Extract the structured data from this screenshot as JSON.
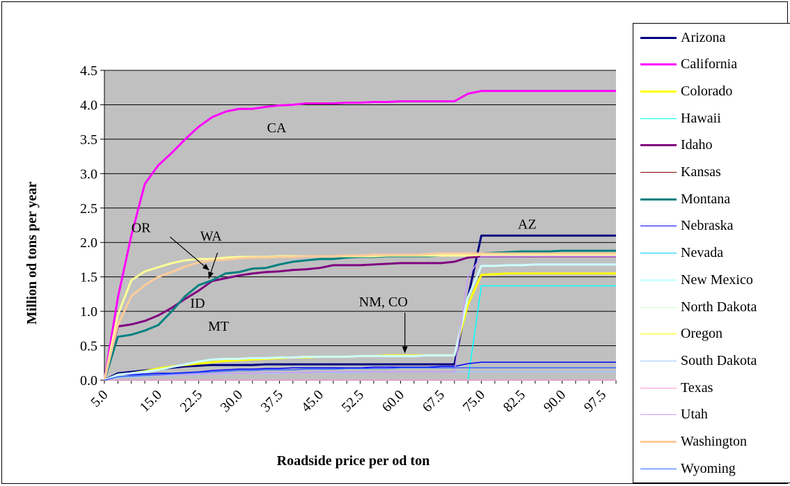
{
  "chart_data": {
    "type": "line",
    "title": "",
    "xlabel": "Roadside price per od ton",
    "ylabel": "Million od tons per year",
    "x": [
      5,
      7.5,
      10,
      12.5,
      15,
      17.5,
      20,
      22.5,
      25,
      27.5,
      30,
      32.5,
      35,
      37.5,
      40,
      42.5,
      45,
      47.5,
      50,
      52.5,
      55,
      57.5,
      60,
      62.5,
      65,
      67.5,
      70,
      72.5,
      75,
      77.5,
      80,
      82.5,
      85,
      87.5,
      90,
      92.5,
      95,
      97.5,
      100
    ],
    "x_tick_labels": [
      "5.0",
      "15.0",
      "22.5",
      "30.0",
      "37.5",
      "45.0",
      "52.5",
      "60.0",
      "67.5",
      "75.0",
      "82.5",
      "90.0",
      "97.5"
    ],
    "ylim": [
      0,
      4.5
    ],
    "y_ticks": [
      0.0,
      0.5,
      1.0,
      1.5,
      2.0,
      2.5,
      3.0,
      3.5,
      4.0,
      4.5
    ],
    "y_tick_labels": [
      "0.0",
      "0.5",
      "1.0",
      "1.5",
      "2.0",
      "2.5",
      "3.0",
      "3.5",
      "4.0",
      "4.5"
    ],
    "grid": true,
    "plot_background": "#c0c0c0",
    "legend_position": "right",
    "series": [
      {
        "name": "Arizona",
        "color": "#000080",
        "width": 3,
        "values": [
          0,
          0.1,
          0.12,
          0.14,
          0.16,
          0.18,
          0.2,
          0.21,
          0.22,
          0.22,
          0.22,
          0.22,
          0.23,
          0.23,
          0.23,
          0.23,
          0.23,
          0.23,
          0.23,
          0.23,
          0.23,
          0.23,
          0.23,
          0.23,
          0.23,
          0.23,
          0.23,
          1.2,
          2.1,
          2.1,
          2.1,
          2.1,
          2.1,
          2.1,
          2.1,
          2.1,
          2.1,
          2.1,
          2.1
        ]
      },
      {
        "name": "California",
        "color": "#ff00ff",
        "width": 3,
        "values": [
          0,
          1.2,
          2.1,
          2.85,
          3.12,
          3.3,
          3.5,
          3.68,
          3.82,
          3.9,
          3.94,
          3.94,
          3.97,
          3.99,
          4.0,
          4.02,
          4.02,
          4.02,
          4.03,
          4.03,
          4.04,
          4.04,
          4.05,
          4.05,
          4.05,
          4.05,
          4.05,
          4.16,
          4.2,
          4.2,
          4.2,
          4.2,
          4.2,
          4.2,
          4.2,
          4.2,
          4.2,
          4.2,
          4.2
        ]
      },
      {
        "name": "Colorado",
        "color": "#ffff00",
        "width": 3,
        "values": [
          0,
          0.08,
          0.1,
          0.13,
          0.17,
          0.2,
          0.22,
          0.24,
          0.26,
          0.28,
          0.29,
          0.3,
          0.31,
          0.32,
          0.33,
          0.33,
          0.34,
          0.34,
          0.34,
          0.35,
          0.35,
          0.36,
          0.36,
          0.36,
          0.36,
          0.36,
          0.36,
          1.1,
          1.53,
          1.54,
          1.55,
          1.55,
          1.55,
          1.55,
          1.55,
          1.55,
          1.55,
          1.55,
          1.55
        ]
      },
      {
        "name": "Hawaii",
        "color": "#00ffff",
        "width": 1.5,
        "values": [
          0,
          0,
          0,
          0,
          0,
          0,
          0,
          0,
          0,
          0,
          0,
          0,
          0,
          0,
          0,
          0,
          0,
          0,
          0,
          0,
          0,
          0,
          0,
          0,
          0,
          0,
          0,
          0,
          1.37,
          1.37,
          1.37,
          1.37,
          1.37,
          1.37,
          1.37,
          1.37,
          1.37,
          1.37,
          1.37
        ]
      },
      {
        "name": "Idaho",
        "color": "#800080",
        "width": 3,
        "values": [
          0,
          0.78,
          0.81,
          0.86,
          0.94,
          1.05,
          1.18,
          1.3,
          1.44,
          1.48,
          1.52,
          1.55,
          1.57,
          1.58,
          1.6,
          1.61,
          1.63,
          1.67,
          1.67,
          1.67,
          1.68,
          1.69,
          1.7,
          1.7,
          1.7,
          1.7,
          1.72,
          1.78,
          1.8,
          1.8,
          1.8,
          1.8,
          1.8,
          1.8,
          1.8,
          1.8,
          1.8,
          1.8,
          1.8
        ]
      },
      {
        "name": "Kansas",
        "color": "#800000",
        "width": 1.5,
        "values": [
          0,
          0,
          0,
          0,
          0,
          0,
          0,
          0,
          0,
          0,
          0,
          0,
          0,
          0,
          0,
          0,
          0,
          0,
          0,
          0,
          0,
          0,
          0,
          0,
          0,
          0,
          0,
          0,
          0,
          0,
          0,
          0,
          0,
          0,
          0,
          0,
          0,
          0,
          0
        ]
      },
      {
        "name": "Montana",
        "color": "#008080",
        "width": 3,
        "values": [
          0,
          0.63,
          0.66,
          0.72,
          0.8,
          1.0,
          1.22,
          1.38,
          1.45,
          1.55,
          1.57,
          1.62,
          1.63,
          1.68,
          1.72,
          1.74,
          1.76,
          1.76,
          1.78,
          1.79,
          1.79,
          1.8,
          1.8,
          1.8,
          1.8,
          1.81,
          1.82,
          1.82,
          1.84,
          1.85,
          1.86,
          1.87,
          1.87,
          1.87,
          1.88,
          1.88,
          1.88,
          1.88,
          1.88
        ]
      },
      {
        "name": "Nebraska",
        "color": "#0000ff",
        "width": 1.5,
        "values": [
          0,
          0.08,
          0.08,
          0.09,
          0.1,
          0.1,
          0.11,
          0.12,
          0.14,
          0.15,
          0.16,
          0.16,
          0.17,
          0.17,
          0.18,
          0.18,
          0.18,
          0.18,
          0.18,
          0.18,
          0.19,
          0.19,
          0.19,
          0.19,
          0.19,
          0.2,
          0.2,
          0.24,
          0.26,
          0.26,
          0.26,
          0.26,
          0.26,
          0.26,
          0.26,
          0.26,
          0.26,
          0.26,
          0.26
        ]
      },
      {
        "name": "Nevada",
        "color": "#00ccff",
        "width": 1.5,
        "values": [
          0,
          0,
          0,
          0,
          0,
          0,
          0,
          0,
          0,
          0,
          0,
          0,
          0,
          0,
          0,
          0,
          0,
          0,
          0,
          0,
          0,
          0,
          0,
          0,
          0,
          0,
          0,
          0,
          0,
          0,
          0,
          0,
          0,
          0,
          0,
          0,
          0,
          0,
          0
        ]
      },
      {
        "name": "New Mexico",
        "color": "#ccffff",
        "width": 3,
        "values": [
          0,
          0.08,
          0.1,
          0.12,
          0.15,
          0.19,
          0.23,
          0.27,
          0.3,
          0.31,
          0.31,
          0.32,
          0.32,
          0.33,
          0.33,
          0.34,
          0.34,
          0.34,
          0.34,
          0.35,
          0.35,
          0.35,
          0.35,
          0.35,
          0.36,
          0.36,
          0.36,
          1.2,
          1.66,
          1.66,
          1.67,
          1.67,
          1.68,
          1.68,
          1.68,
          1.68,
          1.68,
          1.68,
          1.68
        ]
      },
      {
        "name": "North Dakota",
        "color": "#ccffcc",
        "width": 1.5,
        "values": [
          0,
          0,
          0,
          0,
          0,
          0,
          0,
          0,
          0,
          0,
          0,
          0,
          0,
          0,
          0,
          0,
          0,
          0,
          0,
          0,
          0,
          0,
          0,
          0,
          0,
          0,
          0,
          0,
          0,
          0,
          0,
          0,
          0,
          0,
          0,
          0,
          0,
          0,
          0
        ]
      },
      {
        "name": "Oregon",
        "color": "#ffff99",
        "width": 3,
        "values": [
          0,
          0.95,
          1.45,
          1.58,
          1.64,
          1.7,
          1.74,
          1.76,
          1.76,
          1.78,
          1.79,
          1.79,
          1.79,
          1.8,
          1.8,
          1.8,
          1.8,
          1.8,
          1.8,
          1.8,
          1.8,
          1.81,
          1.81,
          1.81,
          1.81,
          1.81,
          1.81,
          1.81,
          1.82,
          1.82,
          1.82,
          1.82,
          1.82,
          1.82,
          1.82,
          1.82,
          1.82,
          1.82,
          1.82
        ]
      },
      {
        "name": "South Dakota",
        "color": "#99ccff",
        "width": 1.5,
        "values": [
          0,
          0.04,
          0.05,
          0.06,
          0.07,
          0.07,
          0.08,
          0.08,
          0.09,
          0.09,
          0.1,
          0.1,
          0.1,
          0.1,
          0.11,
          0.11,
          0.11,
          0.11,
          0.11,
          0.11,
          0.12,
          0.12,
          0.12,
          0.12,
          0.12,
          0.12,
          0.12,
          0.12,
          0.12,
          0.12,
          0.12,
          0.12,
          0.12,
          0.12,
          0.12,
          0.12,
          0.12,
          0.12,
          0.12
        ]
      },
      {
        "name": "Texas",
        "color": "#ff99cc",
        "width": 1.5,
        "values": [
          0,
          0,
          0,
          0,
          0,
          0,
          0,
          0,
          0,
          0,
          0,
          0,
          0,
          0,
          0,
          0,
          0,
          0,
          0,
          0,
          0,
          0,
          0,
          0,
          0,
          0,
          0,
          0,
          0,
          0,
          0,
          0,
          0,
          0,
          0,
          0,
          0,
          0,
          0
        ]
      },
      {
        "name": "Utah",
        "color": "#cc99ff",
        "width": 1.5,
        "values": [
          0,
          0.05,
          0.06,
          0.07,
          0.07,
          0.08,
          0.08,
          0.09,
          0.09,
          0.1,
          0.1,
          0.1,
          0.11,
          0.11,
          0.11,
          0.11,
          0.12,
          0.12,
          0.12,
          0.12,
          0.12,
          0.12,
          0.12,
          0.12,
          0.12,
          0.12,
          0.12,
          1.5,
          1.8,
          1.8,
          1.8,
          1.8,
          1.8,
          1.8,
          1.8,
          1.8,
          1.8,
          1.8,
          1.8
        ]
      },
      {
        "name": "Washington",
        "color": "#ffcc99",
        "width": 3,
        "values": [
          0,
          0.8,
          1.22,
          1.38,
          1.5,
          1.57,
          1.65,
          1.71,
          1.74,
          1.75,
          1.77,
          1.78,
          1.78,
          1.79,
          1.79,
          1.8,
          1.8,
          1.8,
          1.81,
          1.81,
          1.82,
          1.82,
          1.82,
          1.82,
          1.83,
          1.84,
          1.84,
          1.84,
          1.84,
          1.84,
          1.84,
          1.84,
          1.84,
          1.84,
          1.84,
          1.84,
          1.84,
          1.84,
          1.84
        ]
      },
      {
        "name": "Wyoming",
        "color": "#3366ff",
        "width": 1.5,
        "values": [
          0,
          0.05,
          0.06,
          0.07,
          0.08,
          0.09,
          0.1,
          0.11,
          0.12,
          0.13,
          0.14,
          0.14,
          0.15,
          0.15,
          0.15,
          0.16,
          0.16,
          0.16,
          0.17,
          0.17,
          0.17,
          0.17,
          0.18,
          0.18,
          0.18,
          0.18,
          0.18,
          0.18,
          0.18,
          0.18,
          0.18,
          0.18,
          0.18,
          0.18,
          0.18,
          0.18,
          0.18,
          0.18,
          0.18
        ]
      }
    ],
    "annotations": [
      {
        "text": "CA",
        "x": 37,
        "y": 3.6
      },
      {
        "text": "OR",
        "x": 11.8,
        "y": 2.15
      },
      {
        "text": "WA",
        "x": 24.8,
        "y": 2.03
      },
      {
        "text": "ID",
        "x": 22.3,
        "y": 1.05
      },
      {
        "text": "MT",
        "x": 26.2,
        "y": 0.72
      },
      {
        "text": "NM, CO",
        "x": 56.8,
        "y": 1.07
      },
      {
        "text": "AZ",
        "x": 83.5,
        "y": 2.2
      }
    ],
    "arrows": [
      {
        "from": [
          17.2,
          2.08
        ],
        "to": [
          24.4,
          1.6
        ]
      },
      {
        "from": [
          26.0,
          1.85
        ],
        "to": [
          24.4,
          1.48
        ]
      },
      {
        "from": [
          60.8,
          0.98
        ],
        "to": [
          60.8,
          0.4
        ]
      }
    ]
  }
}
